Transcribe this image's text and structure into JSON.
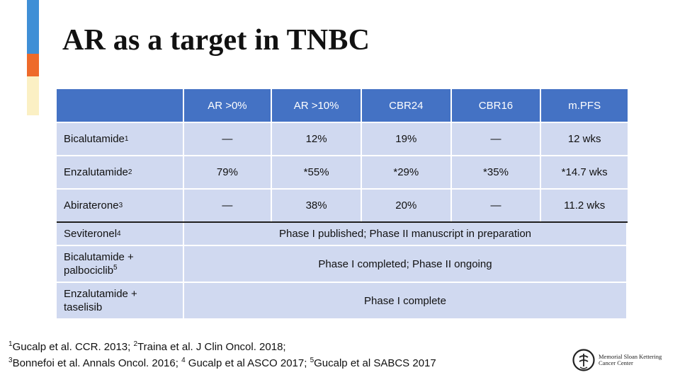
{
  "slide": {
    "title": "AR as a target in TNBC"
  },
  "table": {
    "headers": [
      "",
      "AR >0%",
      "AR >10%",
      "CBR24",
      "CBR16",
      "m.PFS"
    ],
    "rows": [
      {
        "drug": "Bicalutamide",
        "ref": "1",
        "values": [
          "—",
          "12%",
          "19%",
          "—",
          "12 wks"
        ]
      },
      {
        "drug": "Enzalutamide",
        "ref": "2",
        "values": [
          "79%",
          "*55%",
          "*29%",
          "*35%",
          "*14.7 wks"
        ]
      },
      {
        "drug": "Abiraterone",
        "ref": "3",
        "values": [
          "—",
          "38%",
          "20%",
          "—",
          "11.2 wks"
        ]
      }
    ],
    "span_rows": [
      {
        "drug_line1": "Seviteronel",
        "drug_line2": "",
        "ref": "4",
        "note": "Phase I published; Phase II manuscript in preparation"
      },
      {
        "drug_line1": "Bicalutamide +",
        "drug_line2": "palbociclib",
        "ref": "5",
        "note": "Phase I completed; Phase II ongoing"
      },
      {
        "drug_line1": "Enzalutamide +",
        "drug_line2": "taselisib",
        "ref": "",
        "note": "Phase I complete"
      }
    ]
  },
  "footnotes": {
    "line1": [
      {
        "sup": "1",
        "text": "Gucalp et al. CCR. 2013; "
      },
      {
        "sup": "2",
        "text": "Traina et al. J Clin Oncol. 2018;"
      }
    ],
    "line2": [
      {
        "sup": "3",
        "text": "Bonnefoi et al. Annals Oncol. 2016; "
      },
      {
        "sup": "4",
        "text": " Gucalp et al ASCO 2017; "
      },
      {
        "sup": "5",
        "text": "Gucalp et al SABCS 2017"
      }
    ]
  },
  "logo": {
    "line1": "Memorial Sloan Kettering",
    "line2": "Cancer Center"
  },
  "colors": {
    "header_fill": "#4472c4",
    "cell_fill": "#d0d9f0",
    "accent_blue": "#3f8fd6",
    "accent_orange": "#ee6a2a",
    "accent_cream": "#fbf0c4"
  }
}
